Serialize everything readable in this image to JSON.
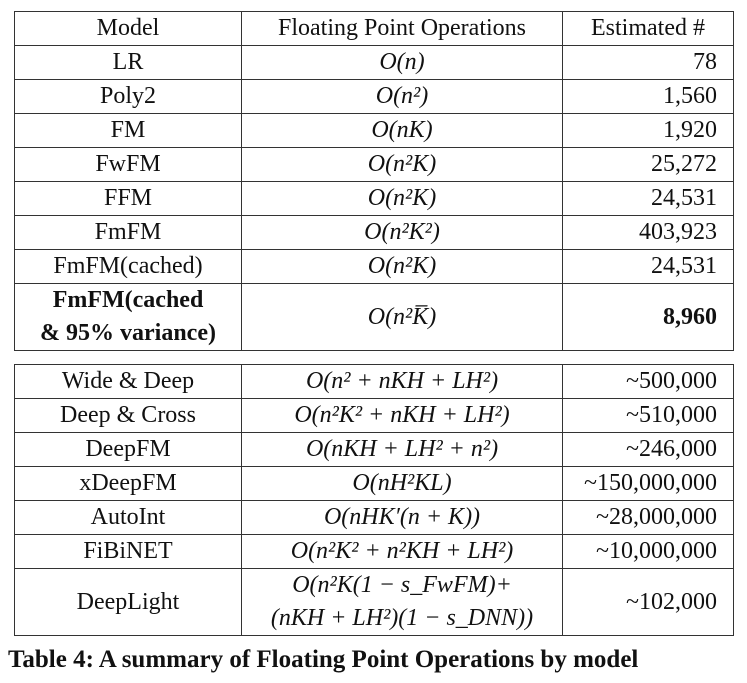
{
  "table_top": {
    "headers": [
      "Model",
      "Floating Point Operations",
      "Estimated #"
    ],
    "rows": [
      {
        "model": "LR",
        "flops": "O(n)",
        "estimate": "78"
      },
      {
        "model": "Poly2",
        "flops": "O(n²)",
        "estimate": "1,560"
      },
      {
        "model": "FM",
        "flops": "O(nK)",
        "estimate": "1,920"
      },
      {
        "model": "FwFM",
        "flops": "O(n²K)",
        "estimate": "25,272"
      },
      {
        "model": "FFM",
        "flops": "O(n²K)",
        "estimate": "24,531"
      },
      {
        "model": "FmFM",
        "flops": "O(n²K²)",
        "estimate": "403,923"
      },
      {
        "model": "FmFM(cached)",
        "flops": "O(n²K)",
        "estimate": "24,531"
      }
    ],
    "highlight_row": {
      "model_line1": "FmFM(cached",
      "model_line2": "& 95% variance)",
      "flops": "O(n²K̅)",
      "estimate": "8,960"
    }
  },
  "table_bottom": {
    "rows": [
      {
        "model": "Wide & Deep",
        "flops": "O(n² + nKH + LH²)",
        "estimate": "~500,000"
      },
      {
        "model": "Deep & Cross",
        "flops": "O(n²K² + nKH + LH²)",
        "estimate": "~510,000"
      },
      {
        "model": "DeepFM",
        "flops": "O(nKH + LH² + n²)",
        "estimate": "~246,000"
      },
      {
        "model": "xDeepFM",
        "flops": "O(nH²KL)",
        "estimate": "~150,000,000"
      },
      {
        "model": "AutoInt",
        "flops": "O(nHK′(n + K))",
        "estimate": "~28,000,000"
      },
      {
        "model": "FiBiNET",
        "flops": "O(n²K² + n²KH + LH²)",
        "estimate": "~10,000,000"
      }
    ],
    "last_row": {
      "model": "DeepLight",
      "flops_line1": "O(n²K(1 − s_FwFM)+",
      "flops_line2": "(nKH + LH²)(1 − s_DNN))",
      "estimate": "~102,000"
    }
  },
  "caption": "Table 4: A summary of Floating Point Operations by model"
}
